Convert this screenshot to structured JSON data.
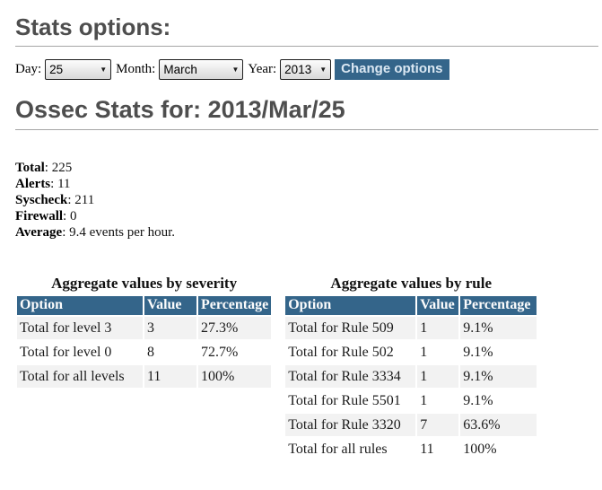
{
  "headings": {
    "stats_options": "Stats options:",
    "main": "Ossec Stats for: 2013/Mar/25"
  },
  "form": {
    "day_label": "Day:",
    "day_value": "25",
    "month_label": "Month:",
    "month_value": "March",
    "year_label": "Year:",
    "year_value": "2013",
    "change_button_label": "Change options",
    "chevron_icon": "▼"
  },
  "summary": {
    "separator": ": ",
    "items": [
      {
        "label": "Total",
        "value": "225"
      },
      {
        "label": "Alerts",
        "value": "11"
      },
      {
        "label": "Syscheck",
        "value": "211"
      },
      {
        "label": "Firewall",
        "value": "0"
      },
      {
        "label": "Average",
        "value": "9.4 events per hour."
      }
    ]
  },
  "severity_table": {
    "title": "Aggregate values by severity",
    "headers": [
      "Option",
      "Value",
      "Percentage"
    ],
    "rows": [
      [
        "Total for level 3",
        "3",
        "27.3%"
      ],
      [
        "Total for level 0",
        "8",
        "72.7%"
      ],
      [
        "Total for all levels",
        "11",
        "100%"
      ]
    ]
  },
  "rule_table": {
    "title": "Aggregate values by rule",
    "headers": [
      "Option",
      "Value",
      "Percentage"
    ],
    "rows": [
      [
        "Total for Rule 509",
        "1",
        "9.1%"
      ],
      [
        "Total for Rule 502",
        "1",
        "9.1%"
      ],
      [
        "Total for Rule 3334",
        "1",
        "9.1%"
      ],
      [
        "Total for Rule 5501",
        "1",
        "9.1%"
      ],
      [
        "Total for Rule 3320",
        "7",
        "63.6%"
      ],
      [
        "Total for all rules",
        "11",
        "100%"
      ]
    ]
  },
  "colors": {
    "accent_blue": "#34658a",
    "heading_gray": "#4e4e4e",
    "row_stripe": "#f2f2f2"
  }
}
